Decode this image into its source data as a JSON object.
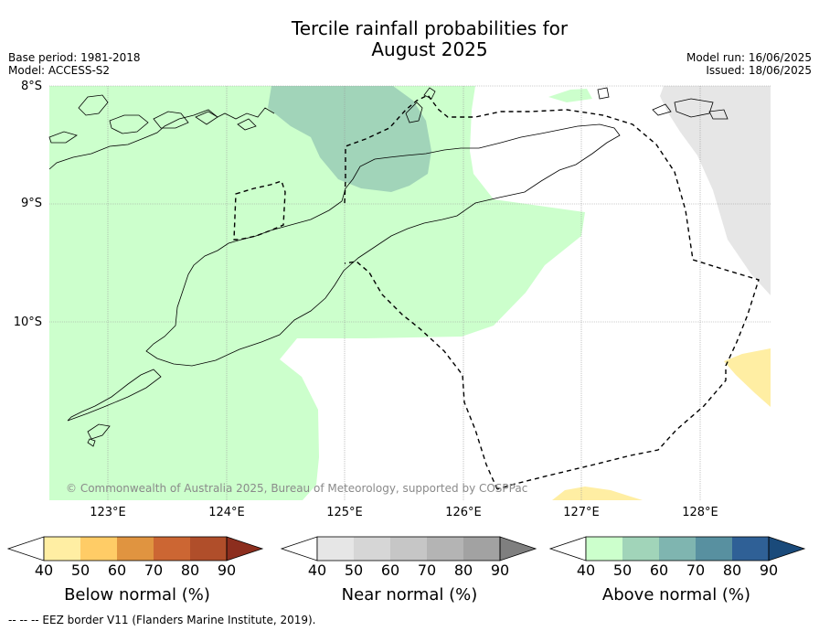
{
  "title": {
    "line1": "Tercile rainfall probabilities for",
    "line2": "August 2025"
  },
  "meta": {
    "base_period": "Base period: 1981-2018",
    "model": "Model: ACCESS-S2",
    "model_run": "Model run: 16/06/2025",
    "issued": "Issued: 18/06/2025"
  },
  "map": {
    "lat_labels": [
      "8°S",
      "9°S",
      "10°S"
    ],
    "lon_labels": [
      "123°E",
      "124°E",
      "125°E",
      "126°E",
      "127°E",
      "128°E"
    ],
    "copyright": "© Commonwealth of Australia 2025, Bureau of Meteorology, supported by COSPPac",
    "colors": {
      "above_40_50": "#ccffcc",
      "above_50_60": "#a1d4b9",
      "near_40_50": "#e6e6e6",
      "below_40_50": "#ffeea3",
      "land_outline": "#000000"
    }
  },
  "colorbars": [
    {
      "label": "Below normal (%)",
      "ticks": [
        "40",
        "50",
        "60",
        "70",
        "80",
        "90"
      ],
      "colors": [
        "#ffffff",
        "#ffeea3",
        "#ffcc66",
        "#e09440",
        "#cc6633",
        "#b04e2a",
        "#8c2e1e"
      ]
    },
    {
      "label": "Near normal (%)",
      "ticks": [
        "40",
        "50",
        "60",
        "70",
        "80",
        "90"
      ],
      "colors": [
        "#ffffff",
        "#e6e6e6",
        "#d6d6d6",
        "#c6c6c6",
        "#b4b4b4",
        "#a2a2a2",
        "#7f7f7f"
      ]
    },
    {
      "label": "Above normal (%)",
      "ticks": [
        "40",
        "50",
        "60",
        "70",
        "80",
        "90"
      ],
      "colors": [
        "#ffffff",
        "#ccffcc",
        "#a1d4b9",
        "#7fb5b0",
        "#5890a0",
        "#2f6096",
        "#1a4a7a"
      ]
    }
  ],
  "footnote": "--  --  -- EEZ border V11 (Flanders Marine Institute, 2019)."
}
